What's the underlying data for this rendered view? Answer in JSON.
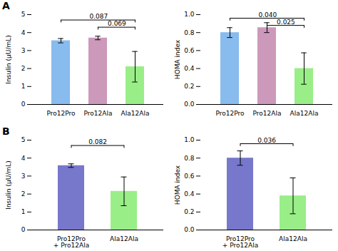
{
  "chart_data": [
    {
      "type": "bar",
      "title": "A",
      "categories": [
        "Pro12Pro",
        "Pro12Ala",
        "Ala12Ala"
      ],
      "values": [
        3.55,
        3.7,
        2.1
      ],
      "errors": [
        0.12,
        0.1,
        0.85
      ],
      "colors": [
        "#88BBEE",
        "#CC99BB",
        "#99EE88"
      ],
      "ylabel": "Insulin (μU/mL)",
      "ylim": [
        0,
        5
      ],
      "yticks": [
        0,
        1,
        2,
        3,
        4,
        5
      ],
      "annotations": [
        {
          "x1": "Pro12Pro",
          "x2": "Ala12Ala",
          "y": 4.7,
          "label": "0.087"
        },
        {
          "x1": "Pro12Ala",
          "x2": "Ala12Ala",
          "y": 4.3,
          "label": "0.069"
        }
      ]
    },
    {
      "type": "bar",
      "categories": [
        "Pro12Pro",
        "Pro12Ala",
        "Ala12Ala"
      ],
      "values": [
        0.8,
        0.855,
        0.4
      ],
      "errors": [
        0.055,
        0.055,
        0.175
      ],
      "colors": [
        "#88BBEE",
        "#CC99BB",
        "#99EE88"
      ],
      "ylabel": "HOMA index",
      "ylim": [
        0.0,
        1.0
      ],
      "yticks": [
        {
          "value": 0,
          "label": "0.0"
        },
        0.2,
        0.4,
        0.6,
        0.8,
        {
          "value": 1,
          "label": "1.0"
        }
      ],
      "annotations": [
        {
          "x1": "Pro12Pro",
          "x2": "Ala12Ala",
          "y": 0.96,
          "label": "0.040"
        },
        {
          "x1": "Pro12Ala",
          "x2": "Ala12Ala",
          "y": 0.88,
          "label": "0.025"
        }
      ]
    },
    {
      "type": "bar",
      "title": "B",
      "categories": [
        "Pro12Pro\n+ Pro12Ala",
        "Ala12Ala"
      ],
      "values": [
        3.58,
        2.15
      ],
      "errors": [
        0.1,
        0.8
      ],
      "colors": [
        "#7777CC",
        "#99EE88"
      ],
      "ylabel": "Insulin (μU/mL)",
      "ylim": [
        0,
        5
      ],
      "yticks": [
        0,
        1,
        2,
        3,
        4,
        5
      ],
      "annotations": [
        {
          "x1": "Pro12Pro\n+ Pro12Ala",
          "x2": "Ala12Ala",
          "y": 4.7,
          "label": "0.082"
        }
      ]
    },
    {
      "type": "bar",
      "categories": [
        "Pro12Pro\n+ Pro12Ala",
        "Ala12Ala"
      ],
      "values": [
        0.8,
        0.38
      ],
      "errors": [
        0.08,
        0.2
      ],
      "colors": [
        "#7777CC",
        "#99EE88"
      ],
      "ylabel": "HOMA index",
      "ylim": [
        0.0,
        1.0
      ],
      "yticks": [
        {
          "value": 0,
          "label": "0.0"
        },
        0.2,
        0.4,
        0.6,
        0.8,
        {
          "value": 1,
          "label": "1.0"
        }
      ],
      "annotations": [
        {
          "x1": "Pro12Pro\n+ Pro12Ala",
          "x2": "Ala12Ala",
          "y": 0.96,
          "label": "0.036"
        }
      ]
    }
  ]
}
